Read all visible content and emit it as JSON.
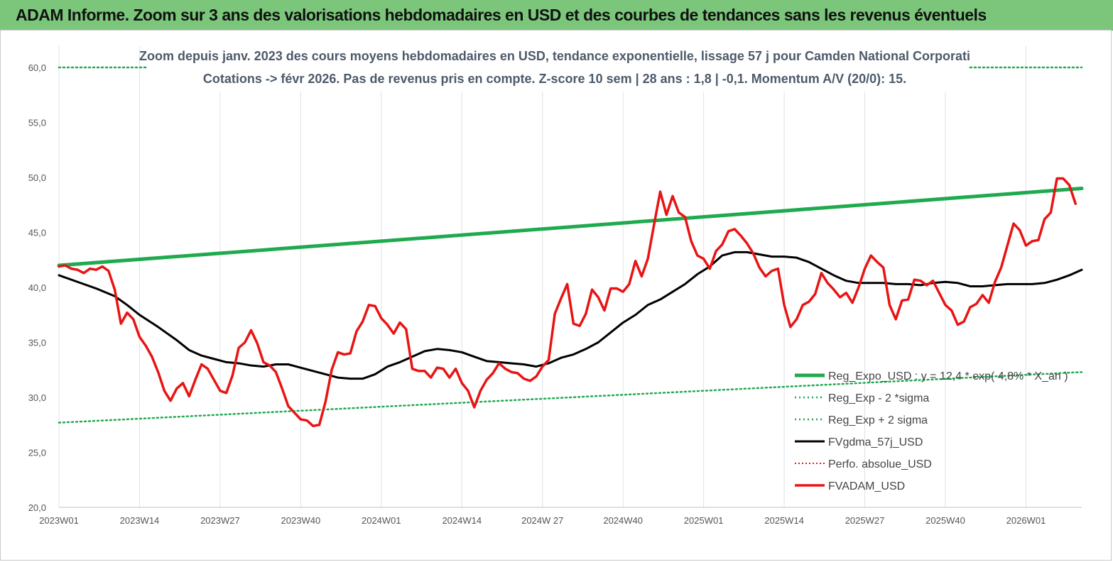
{
  "banner": {
    "title": "ADAM Informe. Zoom sur 3 ans des valorisations hebdomadaires en USD et des courbes de tendances sans les revenus éventuels"
  },
  "colors": {
    "banner_bg": "#7bc67b",
    "regression": "#1faa4f",
    "sigma_bands": "#1faa4f",
    "moving_average": "#000000",
    "perf_absolue": "#e11b1b",
    "price": "#e81414"
  },
  "chart_data": {
    "type": "line",
    "title_line1": "Zoom depuis janv. 2023 des cours moyens hebdomadaires en USD, tendance exponentielle, lissage 57 j pour Camden National Corporati",
    "title_line2": "Cotations -> févr 2026.  Pas de revenus pris en compte. Z-score 10 sem  | 28 ans : 1,8  | -0,1. Momentum A/V (20/0): 15.",
    "ylim": [
      20,
      60
    ],
    "y_ticks": [
      "20,0",
      "25,0",
      "30,0",
      "35,0",
      "40,0",
      "45,0",
      "50,0",
      "55,0",
      "60,0"
    ],
    "y_tick_values": [
      20,
      25,
      30,
      35,
      40,
      45,
      50,
      55,
      60
    ],
    "x_ticks": [
      "2023W01",
      "2023W14",
      "2023W27",
      "2023W40",
      "2024W01",
      "2024W14",
      "2024W 27",
      "2024W40",
      "2025W01",
      "2025W14",
      "2025W27",
      "2025W40",
      "2026W01"
    ],
    "x_tick_weeks": [
      0,
      13,
      26,
      39,
      52,
      65,
      78,
      91,
      104,
      117,
      130,
      143,
      156
    ],
    "weeks_total": 165,
    "grid": "vertical",
    "legend_position": "bottom-right",
    "series": [
      {
        "name": "Reg_Expo_USD : y = 12,4 * exp( 4,8% * X_an )",
        "style": "thick-solid",
        "points": [
          [
            0,
            42.0
          ],
          [
            165,
            49.0
          ]
        ]
      },
      {
        "name": "Reg_Exp - 2 *sigma",
        "style": "dotted",
        "points": [
          [
            0,
            27.7
          ],
          [
            165,
            32.3
          ]
        ]
      },
      {
        "name": "Reg_Exp + 2 sigma",
        "style": "dotted",
        "points": [
          [
            0,
            60.0
          ],
          [
            14,
            60.0
          ],
          [
            147,
            60.0
          ],
          [
            165,
            60.0
          ]
        ]
      },
      {
        "name": "FVgdma_57j_USD",
        "style": "solid",
        "points": [
          [
            0,
            41.1
          ],
          [
            3,
            40.5
          ],
          [
            6,
            39.9
          ],
          [
            9,
            39.2
          ],
          [
            11,
            38.4
          ],
          [
            13,
            37.5
          ],
          [
            16,
            36.4
          ],
          [
            19,
            35.2
          ],
          [
            21,
            34.3
          ],
          [
            23,
            33.8
          ],
          [
            25,
            33.5
          ],
          [
            27,
            33.2
          ],
          [
            29,
            33.1
          ],
          [
            31,
            32.9
          ],
          [
            33,
            32.8
          ],
          [
            35,
            33.0
          ],
          [
            37,
            33.0
          ],
          [
            39,
            32.7
          ],
          [
            41,
            32.4
          ],
          [
            43,
            32.1
          ],
          [
            45,
            31.8
          ],
          [
            47,
            31.7
          ],
          [
            49,
            31.7
          ],
          [
            51,
            32.1
          ],
          [
            53,
            32.8
          ],
          [
            55,
            33.2
          ],
          [
            57,
            33.7
          ],
          [
            59,
            34.2
          ],
          [
            61,
            34.4
          ],
          [
            63,
            34.3
          ],
          [
            65,
            34.1
          ],
          [
            67,
            33.7
          ],
          [
            69,
            33.3
          ],
          [
            71,
            33.2
          ],
          [
            73,
            33.1
          ],
          [
            75,
            33.0
          ],
          [
            77,
            32.8
          ],
          [
            79,
            33.1
          ],
          [
            81,
            33.6
          ],
          [
            83,
            33.9
          ],
          [
            85,
            34.4
          ],
          [
            87,
            35.0
          ],
          [
            89,
            35.9
          ],
          [
            91,
            36.8
          ],
          [
            93,
            37.5
          ],
          [
            95,
            38.4
          ],
          [
            97,
            38.9
          ],
          [
            99,
            39.6
          ],
          [
            101,
            40.3
          ],
          [
            103,
            41.2
          ],
          [
            105,
            41.9
          ],
          [
            107,
            42.9
          ],
          [
            109,
            43.2
          ],
          [
            111,
            43.2
          ],
          [
            113,
            43.0
          ],
          [
            115,
            42.8
          ],
          [
            117,
            42.8
          ],
          [
            119,
            42.7
          ],
          [
            121,
            42.3
          ],
          [
            123,
            41.7
          ],
          [
            125,
            41.1
          ],
          [
            127,
            40.6
          ],
          [
            129,
            40.4
          ],
          [
            131,
            40.4
          ],
          [
            133,
            40.4
          ],
          [
            135,
            40.3
          ],
          [
            137,
            40.3
          ],
          [
            139,
            40.2
          ],
          [
            141,
            40.4
          ],
          [
            143,
            40.5
          ],
          [
            145,
            40.4
          ],
          [
            147,
            40.1
          ],
          [
            149,
            40.1
          ],
          [
            151,
            40.2
          ],
          [
            153,
            40.3
          ],
          [
            155,
            40.3
          ],
          [
            157,
            40.3
          ],
          [
            159,
            40.4
          ],
          [
            161,
            40.7
          ],
          [
            163,
            41.1
          ],
          [
            165,
            41.6
          ]
        ]
      },
      {
        "name": "Perfo. absolue_USD",
        "style": "dotted",
        "points": []
      },
      {
        "name": "FVADAM_USD",
        "style": "thick-solid",
        "points": [
          [
            0,
            41.9
          ],
          [
            1,
            42.0
          ],
          [
            2,
            41.7
          ],
          [
            3,
            41.6
          ],
          [
            4,
            41.3
          ],
          [
            5,
            41.7
          ],
          [
            6,
            41.6
          ],
          [
            7,
            41.9
          ],
          [
            8,
            41.5
          ],
          [
            9,
            39.8
          ],
          [
            10,
            36.7
          ],
          [
            11,
            37.7
          ],
          [
            12,
            37.1
          ],
          [
            13,
            35.5
          ],
          [
            14,
            34.7
          ],
          [
            15,
            33.7
          ],
          [
            16,
            32.3
          ],
          [
            17,
            30.6
          ],
          [
            18,
            29.7
          ],
          [
            19,
            30.8
          ],
          [
            20,
            31.3
          ],
          [
            21,
            30.1
          ],
          [
            22,
            31.6
          ],
          [
            23,
            33.0
          ],
          [
            24,
            32.6
          ],
          [
            25,
            31.6
          ],
          [
            26,
            30.6
          ],
          [
            27,
            30.4
          ],
          [
            28,
            32.0
          ],
          [
            29,
            34.5
          ],
          [
            30,
            35.0
          ],
          [
            31,
            36.1
          ],
          [
            32,
            34.9
          ],
          [
            33,
            33.2
          ],
          [
            34,
            32.9
          ],
          [
            35,
            32.3
          ],
          [
            36,
            30.8
          ],
          [
            37,
            29.2
          ],
          [
            38,
            28.6
          ],
          [
            39,
            28.0
          ],
          [
            40,
            27.9
          ],
          [
            41,
            27.4
          ],
          [
            42,
            27.5
          ],
          [
            43,
            29.6
          ],
          [
            44,
            32.5
          ],
          [
            45,
            34.1
          ],
          [
            46,
            33.9
          ],
          [
            47,
            34.0
          ],
          [
            48,
            36.0
          ],
          [
            49,
            36.9
          ],
          [
            50,
            38.4
          ],
          [
            51,
            38.3
          ],
          [
            52,
            37.2
          ],
          [
            53,
            36.6
          ],
          [
            54,
            35.8
          ],
          [
            55,
            36.8
          ],
          [
            56,
            36.2
          ],
          [
            57,
            32.6
          ],
          [
            58,
            32.4
          ],
          [
            59,
            32.4
          ],
          [
            60,
            31.8
          ],
          [
            61,
            32.7
          ],
          [
            62,
            32.6
          ],
          [
            63,
            31.8
          ],
          [
            64,
            32.6
          ],
          [
            65,
            31.3
          ],
          [
            66,
            30.6
          ],
          [
            67,
            29.1
          ],
          [
            68,
            30.6
          ],
          [
            69,
            31.6
          ],
          [
            70,
            32.2
          ],
          [
            71,
            33.1
          ],
          [
            72,
            32.6
          ],
          [
            73,
            32.3
          ],
          [
            74,
            32.2
          ],
          [
            75,
            31.7
          ],
          [
            76,
            31.5
          ],
          [
            77,
            31.9
          ],
          [
            78,
            32.8
          ],
          [
            79,
            33.4
          ],
          [
            80,
            37.6
          ],
          [
            81,
            39.0
          ],
          [
            82,
            40.3
          ],
          [
            83,
            36.7
          ],
          [
            84,
            36.5
          ],
          [
            85,
            37.6
          ],
          [
            86,
            39.8
          ],
          [
            87,
            39.1
          ],
          [
            88,
            37.9
          ],
          [
            89,
            39.9
          ],
          [
            90,
            39.9
          ],
          [
            91,
            39.6
          ],
          [
            92,
            40.3
          ],
          [
            93,
            42.4
          ],
          [
            94,
            41.0
          ],
          [
            95,
            42.6
          ],
          [
            96,
            45.7
          ],
          [
            97,
            48.7
          ],
          [
            98,
            46.6
          ],
          [
            99,
            48.3
          ],
          [
            100,
            46.8
          ],
          [
            101,
            46.4
          ],
          [
            102,
            44.2
          ],
          [
            103,
            42.9
          ],
          [
            104,
            42.6
          ],
          [
            105,
            41.7
          ],
          [
            106,
            43.3
          ],
          [
            107,
            43.9
          ],
          [
            108,
            45.1
          ],
          [
            109,
            45.3
          ],
          [
            110,
            44.7
          ],
          [
            111,
            44.0
          ],
          [
            112,
            43.1
          ],
          [
            113,
            41.8
          ],
          [
            114,
            41.0
          ],
          [
            115,
            41.5
          ],
          [
            116,
            41.7
          ],
          [
            117,
            38.4
          ],
          [
            118,
            36.4
          ],
          [
            119,
            37.1
          ],
          [
            120,
            38.4
          ],
          [
            121,
            38.7
          ],
          [
            122,
            39.4
          ],
          [
            123,
            41.3
          ],
          [
            124,
            40.4
          ],
          [
            125,
            39.8
          ],
          [
            126,
            39.1
          ],
          [
            127,
            39.5
          ],
          [
            128,
            38.6
          ],
          [
            129,
            40.0
          ],
          [
            130,
            41.7
          ],
          [
            131,
            42.9
          ],
          [
            132,
            42.3
          ],
          [
            133,
            41.8
          ],
          [
            134,
            38.4
          ],
          [
            135,
            37.1
          ],
          [
            136,
            38.8
          ],
          [
            137,
            38.9
          ],
          [
            138,
            40.7
          ],
          [
            139,
            40.6
          ],
          [
            140,
            40.2
          ],
          [
            141,
            40.6
          ],
          [
            142,
            39.5
          ],
          [
            143,
            38.4
          ],
          [
            144,
            37.9
          ],
          [
            145,
            36.6
          ],
          [
            146,
            36.9
          ],
          [
            147,
            38.2
          ],
          [
            148,
            38.5
          ],
          [
            149,
            39.3
          ],
          [
            150,
            38.6
          ],
          [
            151,
            40.5
          ],
          [
            152,
            41.8
          ],
          [
            153,
            43.8
          ],
          [
            154,
            45.8
          ],
          [
            155,
            45.2
          ],
          [
            156,
            43.8
          ],
          [
            157,
            44.2
          ],
          [
            158,
            44.3
          ],
          [
            159,
            46.2
          ],
          [
            160,
            46.8
          ],
          [
            161,
            49.9
          ],
          [
            162,
            49.9
          ],
          [
            163,
            49.3
          ],
          [
            164,
            47.6
          ]
        ]
      }
    ]
  }
}
